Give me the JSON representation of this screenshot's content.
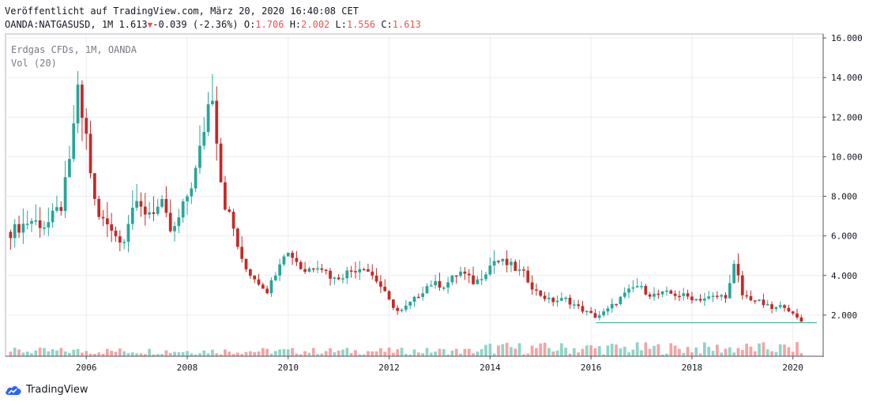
{
  "header": {
    "published": "Veröffentlicht auf TradingView.com, März 20, 2020 16:40:08 CET",
    "symbol": "OANDA:NATGASUSD, 1M",
    "last": "1.613",
    "change": "-0.039 (-2.36%)",
    "o_label": "O:",
    "o_value": "1.706",
    "h_label": "H:",
    "h_value": "2.002",
    "l_label": "L:",
    "l_value": "1.556",
    "c_label": "C:",
    "c_value": "1.613"
  },
  "legend": {
    "series_title": "Erdgas CFDs, 1M, OANDA",
    "volume_title": "Vol (20)"
  },
  "footer": {
    "brand": "TradingView"
  },
  "colors": {
    "up": "#26a69a",
    "down": "#c62828",
    "vol_up": "#8fd4c8",
    "vol_down": "#f4a3a3",
    "grid": "#e9ecef"
  },
  "chart_data": {
    "type": "candlestick",
    "x_ticks": [
      "2006",
      "2008",
      "2010",
      "2012",
      "2014",
      "2016",
      "2018",
      "2020"
    ],
    "y_ticks": [
      "2.000",
      "4.000",
      "6.000",
      "8.000",
      "10.000",
      "12.000",
      "14.000",
      "16.000"
    ],
    "ylim": [
      0,
      16.2
    ],
    "x_range": [
      2004.4,
      2020.6
    ],
    "current_price_line": 1.613,
    "series": [
      {
        "name": "Erdgas CFDs",
        "points": [
          {
            "t": 2004.5,
            "c": 6.2
          },
          {
            "t": 2004.9,
            "c": 6.8
          },
          {
            "t": 2005.2,
            "c": 6.5
          },
          {
            "t": 2005.5,
            "c": 7.5
          },
          {
            "t": 2005.7,
            "c": 10.0
          },
          {
            "t": 2005.8,
            "c": 13.5
          },
          {
            "t": 2006.0,
            "c": 11.0
          },
          {
            "t": 2006.2,
            "c": 7.0
          },
          {
            "t": 2006.5,
            "c": 6.5
          },
          {
            "t": 2006.7,
            "c": 5.5
          },
          {
            "t": 2006.9,
            "c": 7.5
          },
          {
            "t": 2007.2,
            "c": 7.2
          },
          {
            "t": 2007.5,
            "c": 7.5
          },
          {
            "t": 2007.7,
            "c": 6.0
          },
          {
            "t": 2007.9,
            "c": 7.3
          },
          {
            "t": 2008.2,
            "c": 9.5
          },
          {
            "t": 2008.4,
            "c": 12.5
          },
          {
            "t": 2008.5,
            "c": 13.3
          },
          {
            "t": 2008.7,
            "c": 8.0
          },
          {
            "t": 2008.9,
            "c": 6.5
          },
          {
            "t": 2009.1,
            "c": 4.5
          },
          {
            "t": 2009.4,
            "c": 3.7
          },
          {
            "t": 2009.6,
            "c": 3.2
          },
          {
            "t": 2009.9,
            "c": 5.2
          },
          {
            "t": 2010.1,
            "c": 5.0
          },
          {
            "t": 2010.3,
            "c": 4.2
          },
          {
            "t": 2010.6,
            "c": 4.6
          },
          {
            "t": 2010.9,
            "c": 3.8
          },
          {
            "t": 2011.2,
            "c": 4.2
          },
          {
            "t": 2011.5,
            "c": 4.5
          },
          {
            "t": 2011.8,
            "c": 3.6
          },
          {
            "t": 2012.0,
            "c": 2.7
          },
          {
            "t": 2012.2,
            "c": 2.1
          },
          {
            "t": 2012.5,
            "c": 2.8
          },
          {
            "t": 2012.8,
            "c": 3.6
          },
          {
            "t": 2013.1,
            "c": 3.5
          },
          {
            "t": 2013.4,
            "c": 4.2
          },
          {
            "t": 2013.7,
            "c": 3.6
          },
          {
            "t": 2013.9,
            "c": 4.2
          },
          {
            "t": 2014.1,
            "c": 4.8
          },
          {
            "t": 2014.4,
            "c": 4.5
          },
          {
            "t": 2014.7,
            "c": 4.0
          },
          {
            "t": 2014.9,
            "c": 3.2
          },
          {
            "t": 2015.2,
            "c": 2.7
          },
          {
            "t": 2015.5,
            "c": 2.8
          },
          {
            "t": 2015.8,
            "c": 2.3
          },
          {
            "t": 2016.1,
            "c": 1.9
          },
          {
            "t": 2016.3,
            "c": 2.2
          },
          {
            "t": 2016.6,
            "c": 2.9
          },
          {
            "t": 2016.9,
            "c": 3.5
          },
          {
            "t": 2017.2,
            "c": 3.0
          },
          {
            "t": 2017.5,
            "c": 3.1
          },
          {
            "t": 2017.8,
            "c": 3.0
          },
          {
            "t": 2018.1,
            "c": 2.8
          },
          {
            "t": 2018.4,
            "c": 2.9
          },
          {
            "t": 2018.7,
            "c": 3.0
          },
          {
            "t": 2018.85,
            "c": 4.6
          },
          {
            "t": 2019.0,
            "c": 3.0
          },
          {
            "t": 2019.3,
            "c": 2.7
          },
          {
            "t": 2019.6,
            "c": 2.3
          },
          {
            "t": 2019.85,
            "c": 2.5
          },
          {
            "t": 2020.0,
            "c": 2.0
          },
          {
            "t": 2020.2,
            "c": 1.613
          }
        ]
      }
    ]
  }
}
